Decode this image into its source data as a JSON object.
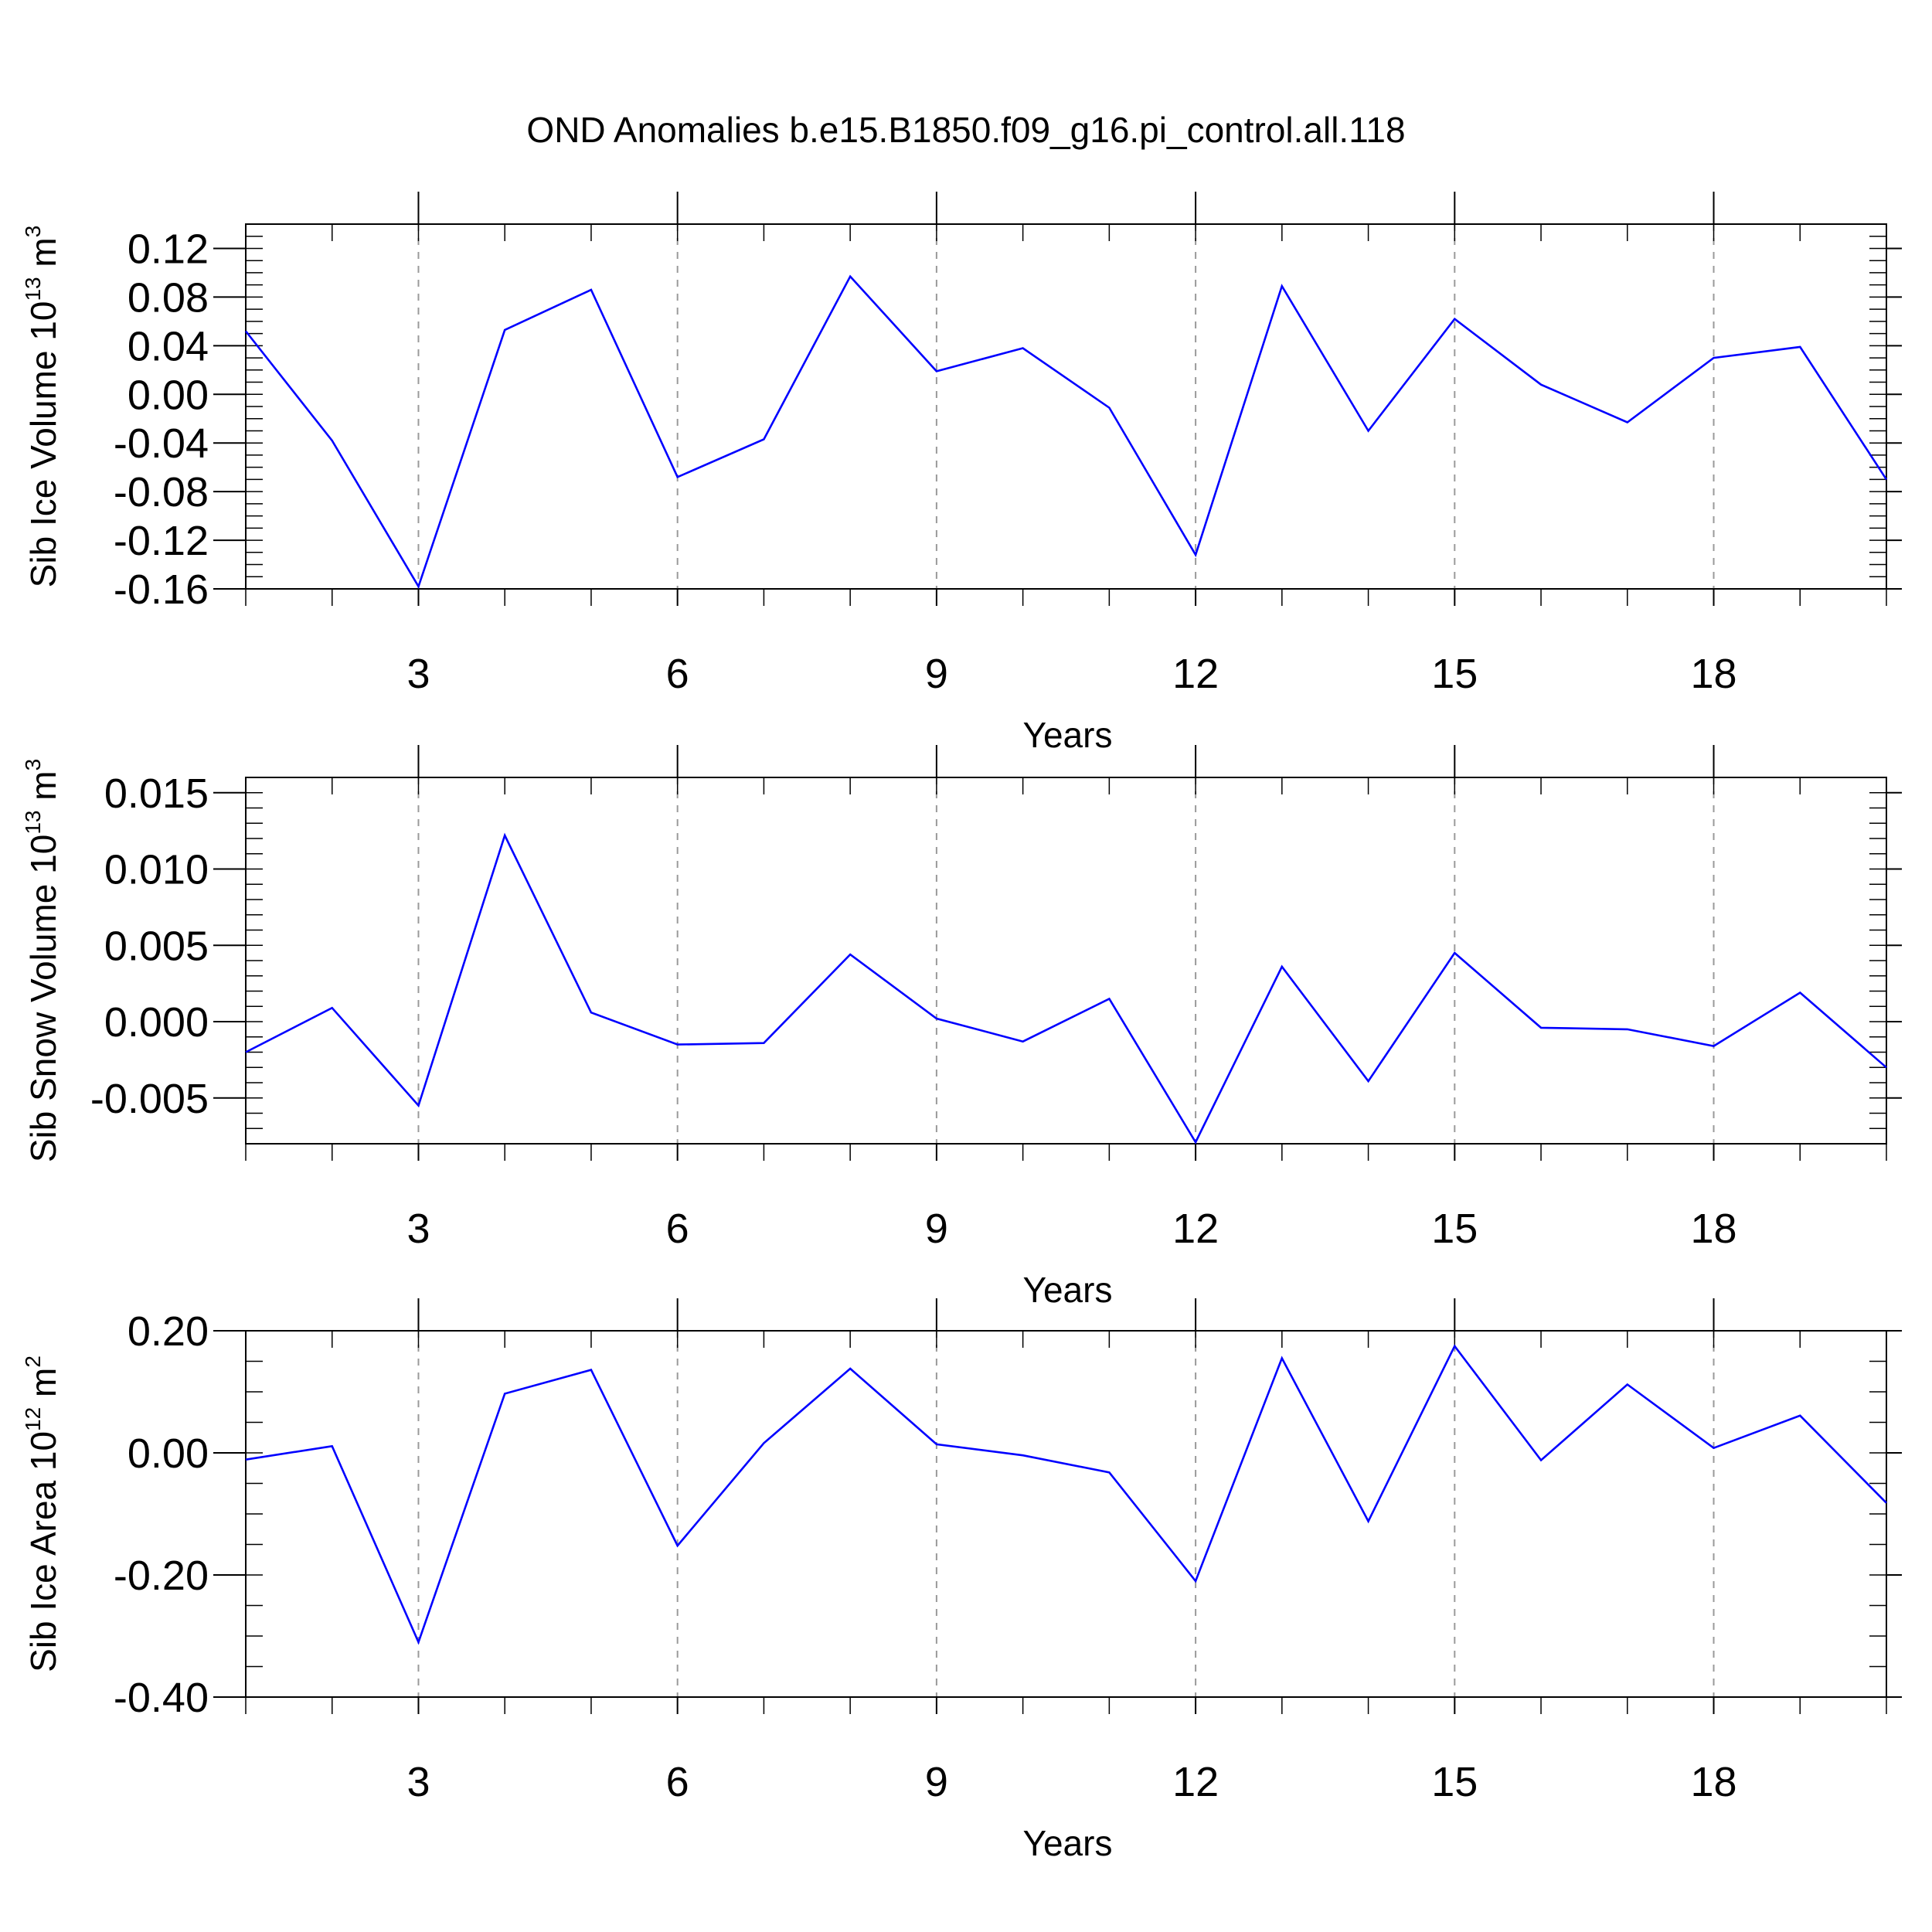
{
  "figure": {
    "title": "OND Anomalies b.e15.B1850.f09_g16.pi_control.all.118"
  },
  "chart_data": [
    {
      "type": "line",
      "ylabel": {
        "text": "Sib Ice Volume 10",
        "sup": "13",
        "unit": " m",
        "unit_sup": "3"
      },
      "xlabel": "Years",
      "xlim": [
        1,
        20
      ],
      "ylim": [
        -0.16,
        0.14
      ],
      "x_ticks": [
        3,
        6,
        9,
        12,
        15,
        18
      ],
      "x_tick_labels": [
        "3",
        "6",
        "9",
        "12",
        "15",
        "18"
      ],
      "y_ticks": [
        -0.16,
        -0.12,
        -0.08,
        -0.04,
        0.0,
        0.04,
        0.08,
        0.12
      ],
      "y_tick_labels": [
        "-0.16",
        "-0.12",
        "-0.08",
        "-0.04",
        "0.00",
        "0.04",
        "0.08",
        "0.12"
      ],
      "y_minor_step": 0.01,
      "grid": "vertical dashed at major x ticks",
      "series_color": "#0000ff",
      "x": [
        1,
        2,
        3,
        4,
        5,
        6,
        7,
        8,
        9,
        10,
        11,
        12,
        13,
        14,
        15,
        16,
        17,
        18,
        19,
        20
      ],
      "values": [
        0.052,
        -0.038,
        -0.158,
        0.053,
        0.086,
        -0.068,
        -0.037,
        0.097,
        0.019,
        0.038,
        -0.011,
        -0.132,
        0.089,
        -0.03,
        0.062,
        0.008,
        -0.023,
        0.03,
        0.039,
        -0.07
      ]
    },
    {
      "type": "line",
      "ylabel": {
        "text": "Sib Snow Volume 10",
        "sup": "13",
        "unit": " m",
        "unit_sup": "3"
      },
      "xlabel": "Years",
      "xlim": [
        1,
        20
      ],
      "ylim": [
        -0.008,
        0.016
      ],
      "x_ticks": [
        3,
        6,
        9,
        12,
        15,
        18
      ],
      "x_tick_labels": [
        "3",
        "6",
        "9",
        "12",
        "15",
        "18"
      ],
      "y_ticks": [
        -0.005,
        0.0,
        0.005,
        0.01,
        0.015
      ],
      "y_tick_labels": [
        "-0.005",
        "0.000",
        "0.005",
        "0.010",
        "0.015"
      ],
      "y_minor_step": 0.001,
      "grid": "vertical dashed at major x ticks",
      "series_color": "#0000ff",
      "x": [
        1,
        2,
        3,
        4,
        5,
        6,
        7,
        8,
        9,
        10,
        11,
        12,
        13,
        14,
        15,
        16,
        17,
        18,
        19,
        20
      ],
      "values": [
        -0.002,
        0.0009,
        -0.0055,
        0.0122,
        0.0006,
        -0.0015,
        -0.0014,
        0.0044,
        0.0002,
        -0.0013,
        0.0015,
        -0.0079,
        0.0036,
        -0.0039,
        0.0045,
        -0.0004,
        -0.0005,
        -0.0016,
        0.0019,
        -0.003
      ]
    },
    {
      "type": "line",
      "ylabel": {
        "text": "Sib Ice Area 10",
        "sup": "12",
        "unit": " m",
        "unit_sup": "2"
      },
      "xlabel": "Years",
      "xlim": [
        1,
        20
      ],
      "ylim": [
        -0.4,
        0.2
      ],
      "x_ticks": [
        3,
        6,
        9,
        12,
        15,
        18
      ],
      "x_tick_labels": [
        "3",
        "6",
        "9",
        "12",
        "15",
        "18"
      ],
      "y_ticks": [
        -0.4,
        -0.2,
        0.0,
        0.2
      ],
      "y_tick_labels": [
        "-0.40",
        "-0.20",
        "0.00",
        "0.20"
      ],
      "y_minor_step": 0.05,
      "grid": "vertical dashed at major x ticks",
      "series_color": "#0000ff",
      "x": [
        1,
        2,
        3,
        4,
        5,
        6,
        7,
        8,
        9,
        10,
        11,
        12,
        13,
        14,
        15,
        16,
        17,
        18,
        19,
        20
      ],
      "values": [
        -0.011,
        0.011,
        -0.31,
        0.097,
        0.136,
        -0.152,
        0.016,
        0.138,
        0.014,
        -0.004,
        -0.032,
        -0.21,
        0.155,
        -0.112,
        0.175,
        -0.012,
        0.112,
        0.008,
        0.061,
        -0.082
      ]
    }
  ]
}
